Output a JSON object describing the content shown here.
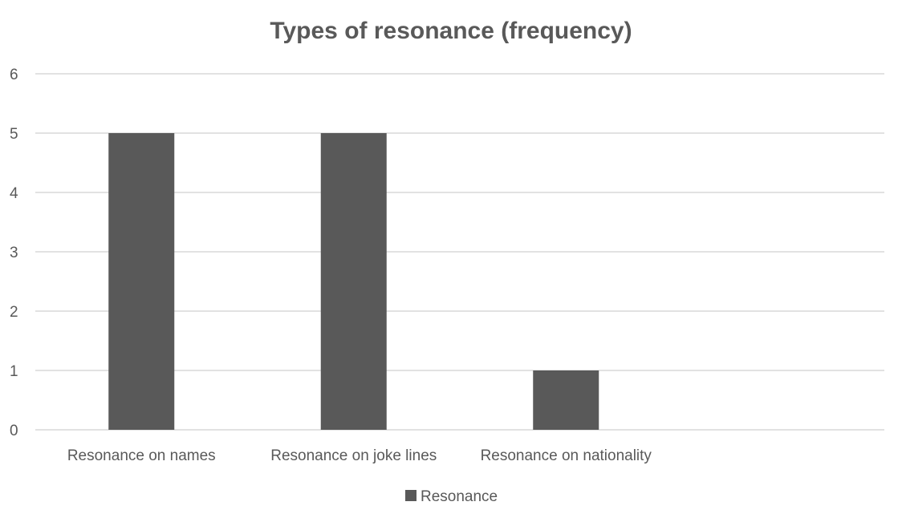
{
  "chart_data": {
    "type": "bar",
    "title": "Types of resonance (frequency)",
    "categories": [
      "Resonance on names",
      "Resonance on joke lines",
      "Resonance on nationality",
      ""
    ],
    "series": [
      {
        "name": "Resonance",
        "values": [
          5,
          5,
          1,
          null
        ],
        "color": "#595959"
      }
    ],
    "xlabel": "",
    "ylabel": "",
    "ylim": [
      0,
      6
    ],
    "yticks": [
      "0",
      "1",
      "2",
      "3",
      "4",
      "5",
      "6"
    ],
    "grid": true,
    "legend_position": "bottom"
  }
}
